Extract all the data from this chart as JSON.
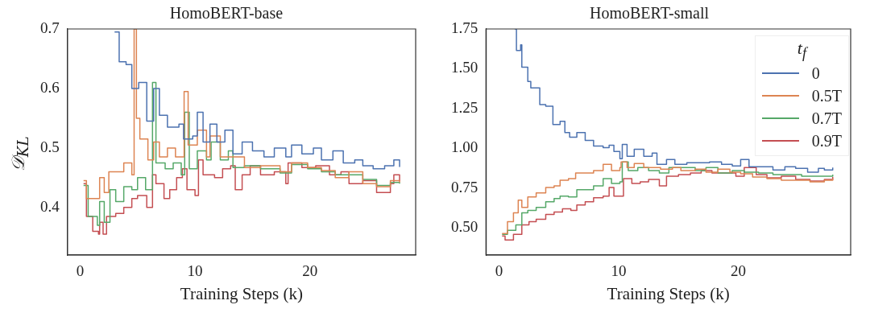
{
  "chart_data": [
    {
      "type": "step",
      "title": "HomoBERT-base",
      "xlabel": "Training Steps (k)",
      "ylabel": "𝒟$_{KL}$",
      "xlim": [
        -1.1,
        29.2
      ],
      "xticks": [
        0,
        10,
        20
      ],
      "ylim": [
        0.32,
        0.7
      ],
      "yticks": [
        {
          "value": 0.4,
          "label": "0.4"
        },
        {
          "value": 0.5,
          "label": "0.5"
        },
        {
          "value": 0.6,
          "label": "0.6"
        },
        {
          "value": 0.7,
          "label": "0.7"
        }
      ],
      "grid": false,
      "legend": false,
      "series": [
        {
          "color": "#4c72b0",
          "x": [
            3.0,
            3.4,
            4.0,
            4.5,
            5.1,
            5.8,
            6.4,
            6.9,
            7.6,
            8.6,
            9.0,
            9.8,
            10.2,
            10.7,
            11.3,
            11.9,
            12.6,
            13.3,
            14.1,
            15.0,
            16.0,
            16.9,
            17.9,
            18.4,
            19.3,
            20.3,
            21.0,
            22.0,
            22.9,
            23.9,
            24.6,
            25.5,
            26.5,
            27.3,
            27.8
          ],
          "values": [
            0.695,
            0.645,
            0.64,
            0.6,
            0.61,
            0.545,
            0.6,
            0.555,
            0.535,
            0.54,
            0.515,
            0.52,
            0.56,
            0.51,
            0.54,
            0.51,
            0.53,
            0.49,
            0.51,
            0.495,
            0.485,
            0.5,
            0.485,
            0.505,
            0.49,
            0.5,
            0.48,
            0.495,
            0.475,
            0.48,
            0.47,
            0.465,
            0.47,
            0.48,
            0.468
          ]
        },
        {
          "color": "#dd8452",
          "x": [
            0.3,
            0.55,
            1.4,
            1.7,
            2.1,
            2.5,
            3.3,
            3.8,
            4.5,
            4.7,
            4.9,
            5.2,
            5.9,
            6.4,
            6.9,
            7.6,
            8.3,
            9.05,
            9.4,
            10.2,
            11.0,
            11.3,
            12.2,
            12.9,
            14.3,
            15.7,
            17.4,
            18.4,
            19.8,
            21.0,
            22.2,
            23.4,
            24.6,
            25.8,
            27.0,
            27.8
          ],
          "values": [
            0.445,
            0.415,
            0.415,
            0.45,
            0.425,
            0.46,
            0.46,
            0.475,
            0.455,
            0.7,
            0.55,
            0.515,
            0.48,
            0.51,
            0.485,
            0.5,
            0.485,
            0.595,
            0.505,
            0.53,
            0.485,
            0.52,
            0.485,
            0.485,
            0.467,
            0.47,
            0.46,
            0.475,
            0.467,
            0.462,
            0.45,
            0.46,
            0.44,
            0.435,
            0.445,
            0.442
          ]
        },
        {
          "color": "#55a868",
          "x": [
            0.3,
            0.7,
            1.5,
            1.7,
            2.1,
            2.6,
            3.1,
            3.8,
            4.5,
            5.0,
            5.7,
            6.3,
            6.6,
            7.4,
            8.1,
            8.8,
            9.1,
            9.5,
            10.2,
            11.0,
            11.4,
            12.2,
            12.9,
            13.3,
            14.3,
            15.7,
            17.4,
            18.4,
            19.8,
            21.0,
            22.2,
            23.4,
            24.6,
            25.8,
            27.0,
            27.8
          ],
          "values": [
            0.437,
            0.385,
            0.37,
            0.41,
            0.375,
            0.43,
            0.41,
            0.435,
            0.43,
            0.45,
            0.43,
            0.61,
            0.475,
            0.465,
            0.475,
            0.455,
            0.56,
            0.465,
            0.495,
            0.48,
            0.51,
            0.48,
            0.495,
            0.467,
            0.47,
            0.465,
            0.458,
            0.472,
            0.465,
            0.46,
            0.455,
            0.455,
            0.447,
            0.437,
            0.442,
            0.44
          ]
        },
        {
          "color": "#c44e52",
          "x": [
            0.3,
            0.55,
            1.1,
            1.6,
            1.7,
            2.0,
            2.3,
            3.1,
            3.8,
            4.5,
            5.0,
            5.8,
            6.3,
            6.6,
            7.3,
            7.8,
            8.4,
            8.9,
            9.3,
            10.0,
            10.3,
            10.7,
            11.7,
            12.4,
            13.1,
            13.5,
            14.1,
            14.8,
            15.7,
            16.9,
            17.9,
            18.1,
            19.3,
            20.5,
            21.7,
            22.7,
            23.4,
            24.6,
            25.8,
            27.0,
            27.3,
            27.8
          ],
          "values": [
            0.44,
            0.385,
            0.36,
            0.355,
            0.375,
            0.355,
            0.385,
            0.39,
            0.4,
            0.415,
            0.42,
            0.4,
            0.455,
            0.44,
            0.415,
            0.43,
            0.45,
            0.465,
            0.43,
            0.42,
            0.48,
            0.455,
            0.45,
            0.465,
            0.47,
            0.43,
            0.455,
            0.47,
            0.455,
            0.46,
            0.44,
            0.475,
            0.467,
            0.47,
            0.455,
            0.46,
            0.44,
            0.445,
            0.425,
            0.44,
            0.455,
            0.444
          ]
        }
      ]
    },
    {
      "type": "step",
      "title": "HomoBERT-small",
      "xlabel": "Training Steps (k)",
      "legend_title": "t$_{f}$",
      "xlim": [
        -1.1,
        29.4
      ],
      "xticks": [
        0,
        10,
        20
      ],
      "ylim": [
        0.33,
        1.75
      ],
      "yticks": [
        {
          "value": 0.5,
          "label": "0.50"
        },
        {
          "value": 0.75,
          "label": "0.75"
        },
        {
          "value": 1.0,
          "label": "1.00"
        },
        {
          "value": 1.25,
          "label": "1.25"
        },
        {
          "value": 1.5,
          "label": "1.50"
        },
        {
          "value": 1.75,
          "label": "1.75"
        }
      ],
      "grid": false,
      "legend": "top right",
      "series": [
        {
          "name": "0",
          "color": "#4c72b0",
          "x": [
            1.3,
            1.45,
            1.8,
            1.9,
            2.4,
            2.65,
            3.4,
            3.9,
            4.5,
            5.1,
            5.5,
            5.9,
            6.5,
            7.2,
            7.9,
            8.7,
            9.2,
            9.6,
            10.1,
            10.3,
            10.7,
            11.3,
            12.1,
            12.8,
            13.2,
            14.0,
            14.7,
            15.7,
            16.6,
            17.6,
            18.6,
            19.5,
            20.2,
            20.9,
            21.9,
            22.9,
            23.9,
            24.8,
            25.8,
            26.7,
            27.2,
            27.9
          ],
          "values": [
            1.75,
            1.615,
            1.65,
            1.51,
            1.42,
            1.38,
            1.275,
            1.265,
            1.15,
            1.17,
            1.1,
            1.07,
            1.1,
            1.05,
            1.015,
            1.005,
            1.02,
            0.98,
            0.935,
            1.025,
            0.95,
            0.995,
            0.95,
            0.97,
            0.9,
            0.93,
            0.9,
            0.91,
            0.91,
            0.915,
            0.9,
            0.89,
            0.93,
            0.885,
            0.885,
            0.865,
            0.885,
            0.875,
            0.85,
            0.875,
            0.865,
            0.88
          ]
        },
        {
          "name": "0.5T",
          "color": "#dd8452",
          "x": [
            0.25,
            0.7,
            1.2,
            1.6,
            1.9,
            2.4,
            3.1,
            3.9,
            4.6,
            5.1,
            5.8,
            6.4,
            7.2,
            7.9,
            8.7,
            9.4,
            10.1,
            10.2,
            10.7,
            11.3,
            12.1,
            12.8,
            13.5,
            14.5,
            15.2,
            16.4,
            17.3,
            18.3,
            19.3,
            20.2,
            21.2,
            22.4,
            23.6,
            24.8,
            26.0,
            27.2,
            27.9
          ],
          "values": [
            0.465,
            0.54,
            0.595,
            0.675,
            0.63,
            0.695,
            0.72,
            0.755,
            0.765,
            0.8,
            0.81,
            0.845,
            0.845,
            0.86,
            0.9,
            0.86,
            0.88,
            0.915,
            0.88,
            0.905,
            0.88,
            0.88,
            0.87,
            0.88,
            0.86,
            0.87,
            0.85,
            0.87,
            0.85,
            0.84,
            0.82,
            0.81,
            0.8,
            0.8,
            0.79,
            0.8,
            0.81
          ]
        },
        {
          "name": "0.7T",
          "color": "#55a868",
          "x": [
            0.25,
            0.7,
            1.4,
            1.9,
            2.4,
            3.1,
            3.9,
            4.6,
            5.1,
            5.8,
            6.5,
            7.2,
            7.9,
            8.7,
            9.4,
            10.1,
            10.3,
            10.8,
            11.6,
            12.5,
            13.4,
            14.2,
            15.2,
            16.4,
            17.3,
            18.3,
            19.5,
            20.5,
            21.7,
            22.9,
            24.1,
            25.3,
            26.8,
            27.9
          ],
          "values": [
            0.46,
            0.485,
            0.52,
            0.595,
            0.61,
            0.63,
            0.665,
            0.685,
            0.7,
            0.695,
            0.74,
            0.74,
            0.765,
            0.81,
            0.78,
            0.79,
            0.915,
            0.86,
            0.88,
            0.86,
            0.845,
            0.88,
            0.88,
            0.86,
            0.88,
            0.845,
            0.86,
            0.85,
            0.845,
            0.835,
            0.835,
            0.825,
            0.825,
            0.835
          ]
        },
        {
          "name": "0.9T",
          "color": "#c44e52",
          "x": [
            0.25,
            0.5,
            1.2,
            1.9,
            2.5,
            3.1,
            3.9,
            4.6,
            5.3,
            6.0,
            6.5,
            7.2,
            7.9,
            8.7,
            9.2,
            9.6,
            10.1,
            10.4,
            11.1,
            11.8,
            12.5,
            13.4,
            14.0,
            15.0,
            16.0,
            16.9,
            17.8,
            18.8,
            19.8,
            20.5,
            21.5,
            22.4,
            23.6,
            24.8,
            26.0,
            27.2,
            27.9
          ],
          "values": [
            0.45,
            0.425,
            0.46,
            0.52,
            0.54,
            0.555,
            0.585,
            0.6,
            0.62,
            0.61,
            0.645,
            0.665,
            0.69,
            0.7,
            0.755,
            0.7,
            0.7,
            0.81,
            0.78,
            0.79,
            0.805,
            0.765,
            0.825,
            0.835,
            0.845,
            0.86,
            0.845,
            0.845,
            0.825,
            0.88,
            0.835,
            0.815,
            0.825,
            0.805,
            0.795,
            0.805,
            0.82
          ]
        }
      ]
    }
  ]
}
